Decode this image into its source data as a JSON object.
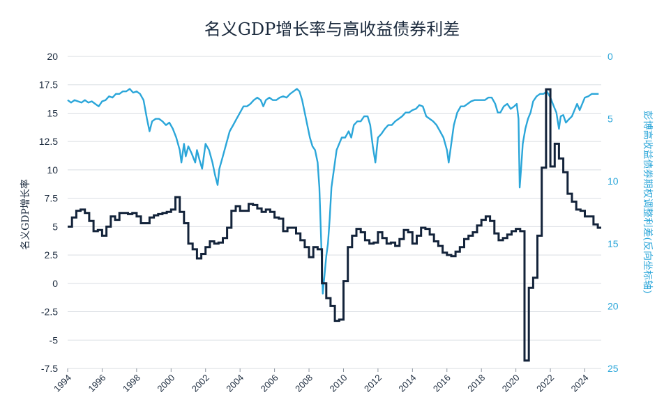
{
  "chart_data": {
    "type": "line",
    "title": "名义GDP增长率与高收益债券利差",
    "ylabel_left": "名义GDP增长率",
    "ylabel_right": "彭博高收益债券期权调整利差(反向坐标轴)",
    "ylim_left": [
      -7.5,
      20
    ],
    "ylim_right": [
      0,
      25
    ],
    "right_axis_inverted": true,
    "yticks_left": [
      "20",
      "17.5",
      "15",
      "12.5",
      "10",
      "7.5",
      "5",
      "2.5",
      "0",
      "-2.5",
      "-5",
      "-7.5"
    ],
    "yticks_right": [
      "0",
      "5",
      "10",
      "15",
      "20",
      "25"
    ],
    "xticks": [
      "1994",
      "1996",
      "1998",
      "2000",
      "2002",
      "2004",
      "2006",
      "2008",
      "2010",
      "2012",
      "2014",
      "2016",
      "2018",
      "2020",
      "2022",
      "2024"
    ],
    "grid": "horizontal",
    "colors": {
      "gdp": "#13233a",
      "spread": "#2ba6d9",
      "grid": "#d9dde2"
    },
    "series": [
      {
        "name": "名义GDP增长率",
        "axis": "left",
        "step": true,
        "x": [
          1994.0,
          1994.25,
          1994.5,
          1994.75,
          1995.0,
          1995.25,
          1995.5,
          1995.75,
          1996.0,
          1996.25,
          1996.5,
          1996.75,
          1997.0,
          1997.25,
          1997.5,
          1997.75,
          1998.0,
          1998.25,
          1998.5,
          1998.75,
          1999.0,
          1999.25,
          1999.5,
          1999.75,
          2000.0,
          2000.25,
          2000.5,
          2000.75,
          2001.0,
          2001.25,
          2001.5,
          2001.75,
          2002.0,
          2002.25,
          2002.5,
          2002.75,
          2003.0,
          2003.25,
          2003.5,
          2003.75,
          2004.0,
          2004.25,
          2004.5,
          2004.75,
          2005.0,
          2005.25,
          2005.5,
          2005.75,
          2006.0,
          2006.25,
          2006.5,
          2006.75,
          2007.0,
          2007.25,
          2007.5,
          2007.75,
          2008.0,
          2008.25,
          2008.5,
          2008.75,
          2009.0,
          2009.25,
          2009.5,
          2009.75,
          2010.0,
          2010.25,
          2010.5,
          2010.75,
          2011.0,
          2011.25,
          2011.5,
          2011.75,
          2012.0,
          2012.25,
          2012.5,
          2012.75,
          2013.0,
          2013.25,
          2013.5,
          2013.75,
          2014.0,
          2014.25,
          2014.5,
          2014.75,
          2015.0,
          2015.25,
          2015.5,
          2015.75,
          2016.0,
          2016.25,
          2016.5,
          2016.75,
          2017.0,
          2017.25,
          2017.5,
          2017.75,
          2018.0,
          2018.25,
          2018.5,
          2018.75,
          2019.0,
          2019.25,
          2019.5,
          2019.75,
          2020.0,
          2020.25,
          2020.5,
          2020.75,
          2021.0,
          2021.25,
          2021.5,
          2021.75,
          2022.0,
          2022.25,
          2022.5,
          2022.75,
          2023.0,
          2023.25,
          2023.5,
          2023.75,
          2024.0,
          2024.25,
          2024.5,
          2024.75
        ],
        "values": [
          5.0,
          5.8,
          6.4,
          6.5,
          6.2,
          5.5,
          4.6,
          4.7,
          4.2,
          5.0,
          5.9,
          5.6,
          6.2,
          6.2,
          6.1,
          6.2,
          5.9,
          5.3,
          5.3,
          5.8,
          6.0,
          6.1,
          6.2,
          6.3,
          6.5,
          7.6,
          6.3,
          5.3,
          3.5,
          3.0,
          2.2,
          2.6,
          3.2,
          3.7,
          3.5,
          3.6,
          4.0,
          4.9,
          6.4,
          6.8,
          6.4,
          6.4,
          7.0,
          6.9,
          6.6,
          6.3,
          6.5,
          6.3,
          5.8,
          5.7,
          4.6,
          4.9,
          4.9,
          4.4,
          3.8,
          3.2,
          2.3,
          3.2,
          3.0,
          0.0,
          -1.3,
          -2.0,
          -3.3,
          -3.2,
          0.2,
          3.2,
          4.2,
          4.8,
          4.5,
          3.8,
          3.5,
          3.6,
          4.5,
          4.0,
          3.5,
          3.6,
          3.3,
          3.9,
          4.7,
          4.5,
          3.5,
          4.2,
          4.9,
          4.8,
          4.3,
          3.7,
          3.3,
          2.7,
          2.5,
          2.4,
          2.8,
          3.2,
          3.9,
          4.2,
          4.5,
          5.1,
          5.6,
          5.9,
          5.5,
          4.4,
          3.8,
          4.0,
          4.3,
          4.6,
          4.8,
          4.6,
          -6.8,
          -0.4,
          0.5,
          4.2,
          10.2,
          17.1,
          10.3,
          12.3,
          11.0,
          9.8,
          7.9,
          7.2,
          6.5,
          6.4,
          5.9,
          5.9,
          5.2,
          4.9
        ]
      },
      {
        "name": "彭博高收益债券期权调整利差(反向坐标轴)",
        "axis": "right",
        "x": [
          1994.0,
          1994.2,
          1994.4,
          1994.6,
          1994.8,
          1995.0,
          1995.2,
          1995.4,
          1995.6,
          1995.8,
          1996.0,
          1996.2,
          1996.4,
          1996.6,
          1996.8,
          1997.0,
          1997.2,
          1997.4,
          1997.6,
          1997.8,
          1998.0,
          1998.2,
          1998.4,
          1998.6,
          1998.75,
          1998.9,
          1999.1,
          1999.3,
          1999.5,
          1999.7,
          1999.9,
          2000.1,
          2000.3,
          2000.5,
          2000.6,
          2000.75,
          2000.85,
          2001.0,
          2001.2,
          2001.4,
          2001.5,
          2001.65,
          2001.8,
          2002.0,
          2002.2,
          2002.4,
          2002.55,
          2002.7,
          2002.8,
          2003.0,
          2003.2,
          2003.4,
          2003.6,
          2003.8,
          2004.0,
          2004.2,
          2004.4,
          2004.6,
          2004.8,
          2005.0,
          2005.2,
          2005.35,
          2005.5,
          2005.7,
          2005.9,
          2006.1,
          2006.3,
          2006.5,
          2006.7,
          2006.9,
          2007.1,
          2007.3,
          2007.45,
          2007.6,
          2007.75,
          2007.9,
          2008.05,
          2008.2,
          2008.35,
          2008.5,
          2008.6,
          2008.7,
          2008.8,
          2008.9,
          2009.0,
          2009.1,
          2009.2,
          2009.3,
          2009.45,
          2009.6,
          2009.75,
          2009.9,
          2010.1,
          2010.3,
          2010.45,
          2010.6,
          2010.8,
          2011.0,
          2011.2,
          2011.4,
          2011.55,
          2011.7,
          2011.85,
          2012.0,
          2012.2,
          2012.4,
          2012.6,
          2012.8,
          2013.0,
          2013.2,
          2013.4,
          2013.6,
          2013.8,
          2014.0,
          2014.2,
          2014.4,
          2014.6,
          2014.8,
          2015.0,
          2015.2,
          2015.4,
          2015.6,
          2015.8,
          2016.0,
          2016.1,
          2016.25,
          2016.4,
          2016.6,
          2016.8,
          2017.0,
          2017.2,
          2017.4,
          2017.6,
          2017.8,
          2018.0,
          2018.2,
          2018.4,
          2018.6,
          2018.8,
          2018.95,
          2019.1,
          2019.3,
          2019.5,
          2019.7,
          2019.9,
          2020.05,
          2020.15,
          2020.22,
          2020.3,
          2020.4,
          2020.55,
          2020.7,
          2020.85,
          2021.0,
          2021.2,
          2021.4,
          2021.6,
          2021.8,
          2022.0,
          2022.2,
          2022.35,
          2022.5,
          2022.6,
          2022.75,
          2022.9,
          2023.1,
          2023.25,
          2023.4,
          2023.55,
          2023.7,
          2023.85,
          2024.0,
          2024.2,
          2024.4,
          2024.6,
          2024.8
        ],
        "values": [
          3.5,
          3.7,
          3.5,
          3.6,
          3.7,
          3.5,
          3.7,
          3.6,
          3.8,
          4.0,
          3.6,
          3.5,
          3.2,
          3.3,
          3.0,
          3.0,
          2.8,
          2.8,
          2.6,
          2.9,
          2.8,
          3.0,
          3.5,
          5.0,
          6.0,
          5.2,
          5.0,
          5.0,
          5.2,
          5.5,
          5.3,
          5.8,
          6.5,
          7.5,
          8.5,
          7.0,
          8.0,
          7.2,
          7.8,
          8.5,
          7.5,
          8.3,
          9.0,
          7.0,
          7.5,
          8.5,
          9.5,
          10.3,
          9.0,
          8.0,
          7.0,
          6.0,
          5.5,
          5.0,
          4.5,
          4.0,
          4.0,
          3.8,
          3.5,
          3.3,
          3.5,
          4.0,
          3.5,
          3.3,
          3.5,
          3.5,
          3.3,
          3.2,
          3.3,
          3.0,
          2.8,
          2.6,
          2.8,
          3.5,
          4.5,
          5.5,
          6.5,
          7.2,
          7.5,
          8.5,
          10.5,
          14.5,
          19.0,
          17.5,
          16.0,
          15.0,
          13.0,
          10.5,
          9.0,
          7.5,
          7.0,
          6.5,
          6.5,
          6.0,
          6.5,
          5.5,
          5.2,
          5.2,
          4.8,
          4.8,
          5.5,
          7.2,
          8.5,
          6.5,
          6.2,
          5.8,
          5.5,
          5.5,
          5.2,
          5.0,
          4.8,
          4.5,
          4.5,
          4.3,
          4.2,
          3.9,
          4.0,
          4.8,
          5.0,
          5.2,
          5.5,
          6.0,
          6.5,
          7.5,
          8.5,
          7.0,
          5.5,
          4.5,
          4.0,
          4.0,
          3.8,
          3.6,
          3.5,
          3.5,
          3.5,
          3.5,
          3.3,
          3.3,
          3.8,
          4.5,
          4.5,
          4.0,
          3.8,
          4.2,
          4.0,
          3.8,
          5.0,
          10.5,
          9.0,
          7.0,
          5.8,
          5.0,
          4.5,
          3.6,
          3.2,
          3.0,
          3.0,
          2.8,
          3.3,
          4.0,
          4.5,
          5.8,
          4.8,
          4.7,
          5.3,
          5.0,
          4.8,
          4.3,
          3.8,
          4.3,
          3.8,
          3.3,
          3.2,
          3.0,
          3.0,
          3.0
        ]
      }
    ]
  }
}
